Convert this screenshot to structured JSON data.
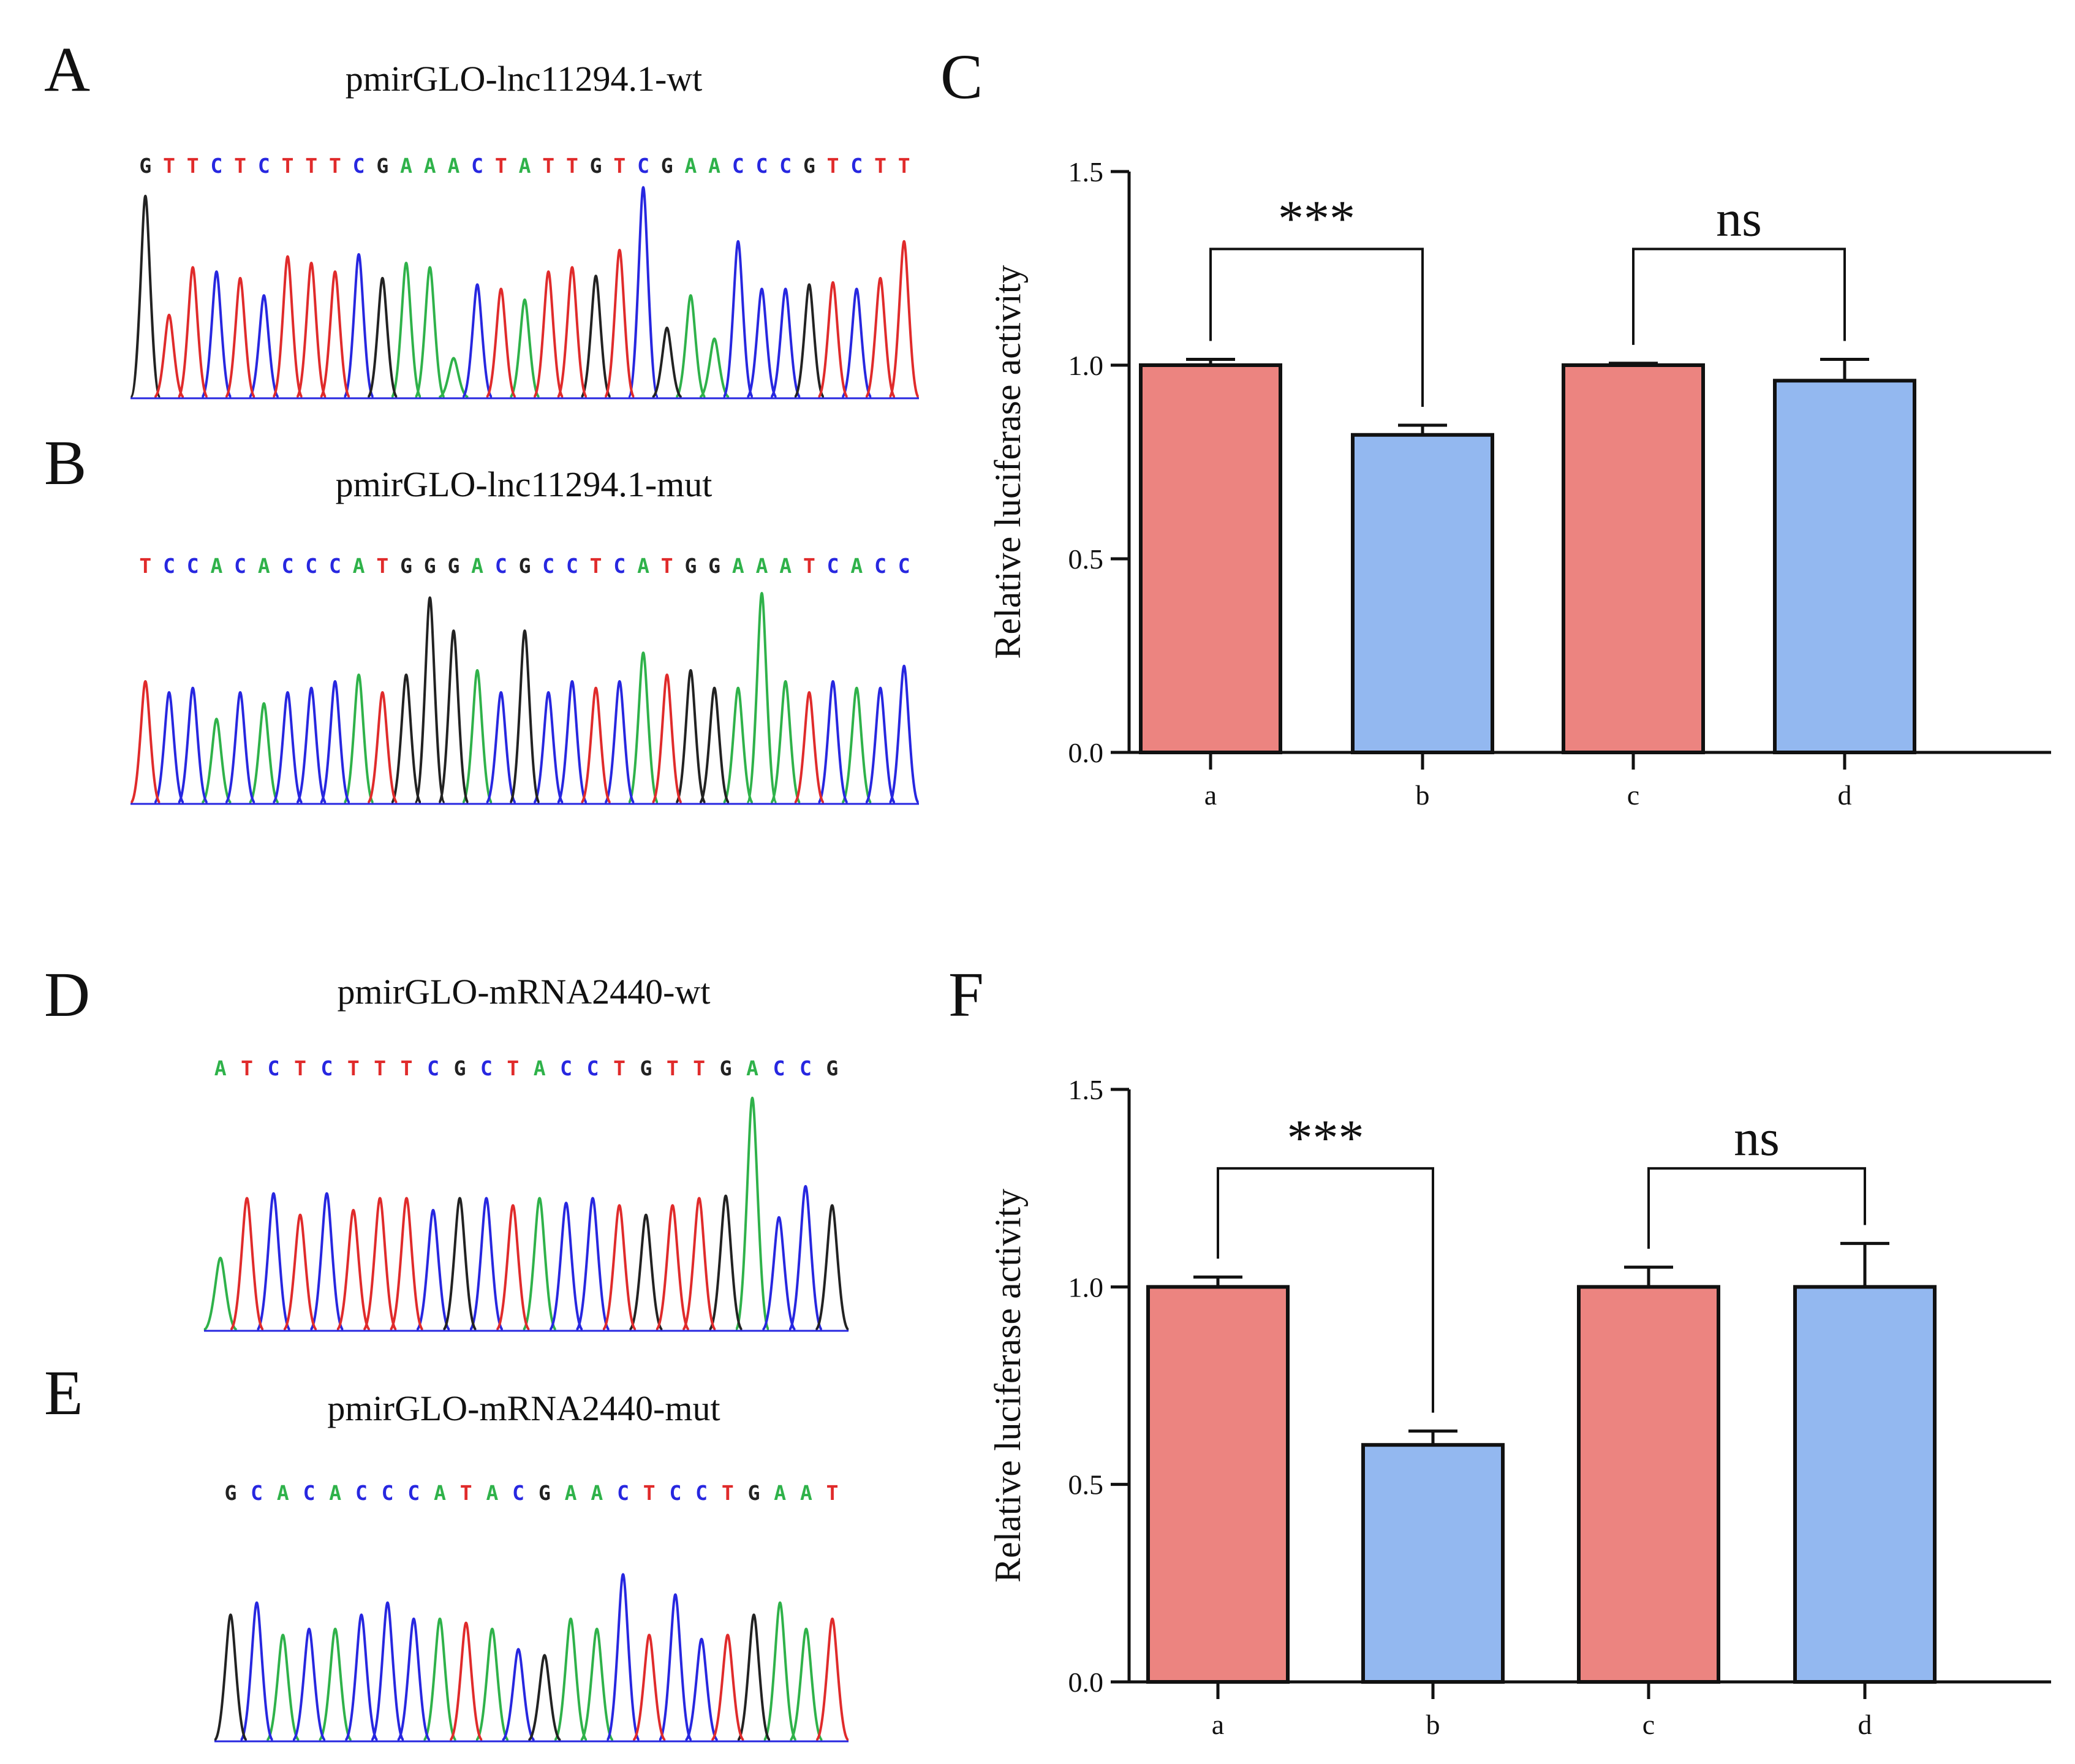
{
  "panels": {
    "A": {
      "letter": "A",
      "title": "pmirGLO-lnc11294.1-wt",
      "sequence": "GTTCTCTTTCGAAACTATTGTCGAACCCGTCTT"
    },
    "B": {
      "letter": "B",
      "title": "pmirGLO-lnc11294.1-mut",
      "sequence": "TCCACACCCATGGGACGCCTCATGGAAATCACC"
    },
    "C": {
      "letter": "C"
    },
    "D": {
      "letter": "D",
      "title": "pmirGLO-mRNA2440-wt",
      "sequence": "ATCTCTTTCGCTACCTGTTGACCG"
    },
    "E": {
      "letter": "E",
      "title": "pmirGLO-mRNA2440-mut",
      "sequence": "GCACACCCATACGAACTCCTGAAT"
    },
    "F": {
      "letter": "F"
    }
  },
  "base_colors": {
    "A": "#2fb24a",
    "C": "#2727e0",
    "G": "#222222",
    "T": "#e02b2b"
  },
  "chart_data": [
    {
      "panel": "C",
      "type": "bar",
      "categories": [
        "a",
        "b",
        "c",
        "d"
      ],
      "values": [
        1.0,
        0.82,
        1.0,
        0.96
      ],
      "errors": [
        0.015,
        0.025,
        0.005,
        0.055
      ],
      "bar_colors": [
        "#ec8480",
        "#93b8f0",
        "#ec8480",
        "#93b8f0"
      ],
      "ylabel": "Relative luciferase activity",
      "xlabel": "",
      "ylim": [
        0,
        1.5
      ],
      "yticks": [
        "0.0",
        "0.5",
        "1.0",
        "1.5"
      ],
      "comparisons": [
        {
          "from": "a",
          "to": "b",
          "label": "***"
        },
        {
          "from": "c",
          "to": "d",
          "label": "ns"
        }
      ]
    },
    {
      "panel": "F",
      "type": "bar",
      "categories": [
        "a",
        "b",
        "c",
        "d"
      ],
      "values": [
        1.0,
        0.6,
        1.0,
        1.0
      ],
      "errors": [
        0.025,
        0.035,
        0.05,
        0.11
      ],
      "bar_colors": [
        "#ec8480",
        "#93b8f0",
        "#ec8480",
        "#93b8f0"
      ],
      "ylabel": "Relative luciferase activity",
      "xlabel": "",
      "ylim": [
        0,
        1.5
      ],
      "yticks": [
        "0.0",
        "0.5",
        "1.0",
        "1.5"
      ],
      "comparisons": [
        {
          "from": "a",
          "to": "b",
          "label": "***"
        },
        {
          "from": "c",
          "to": "d",
          "label": "ns"
        }
      ]
    }
  ]
}
